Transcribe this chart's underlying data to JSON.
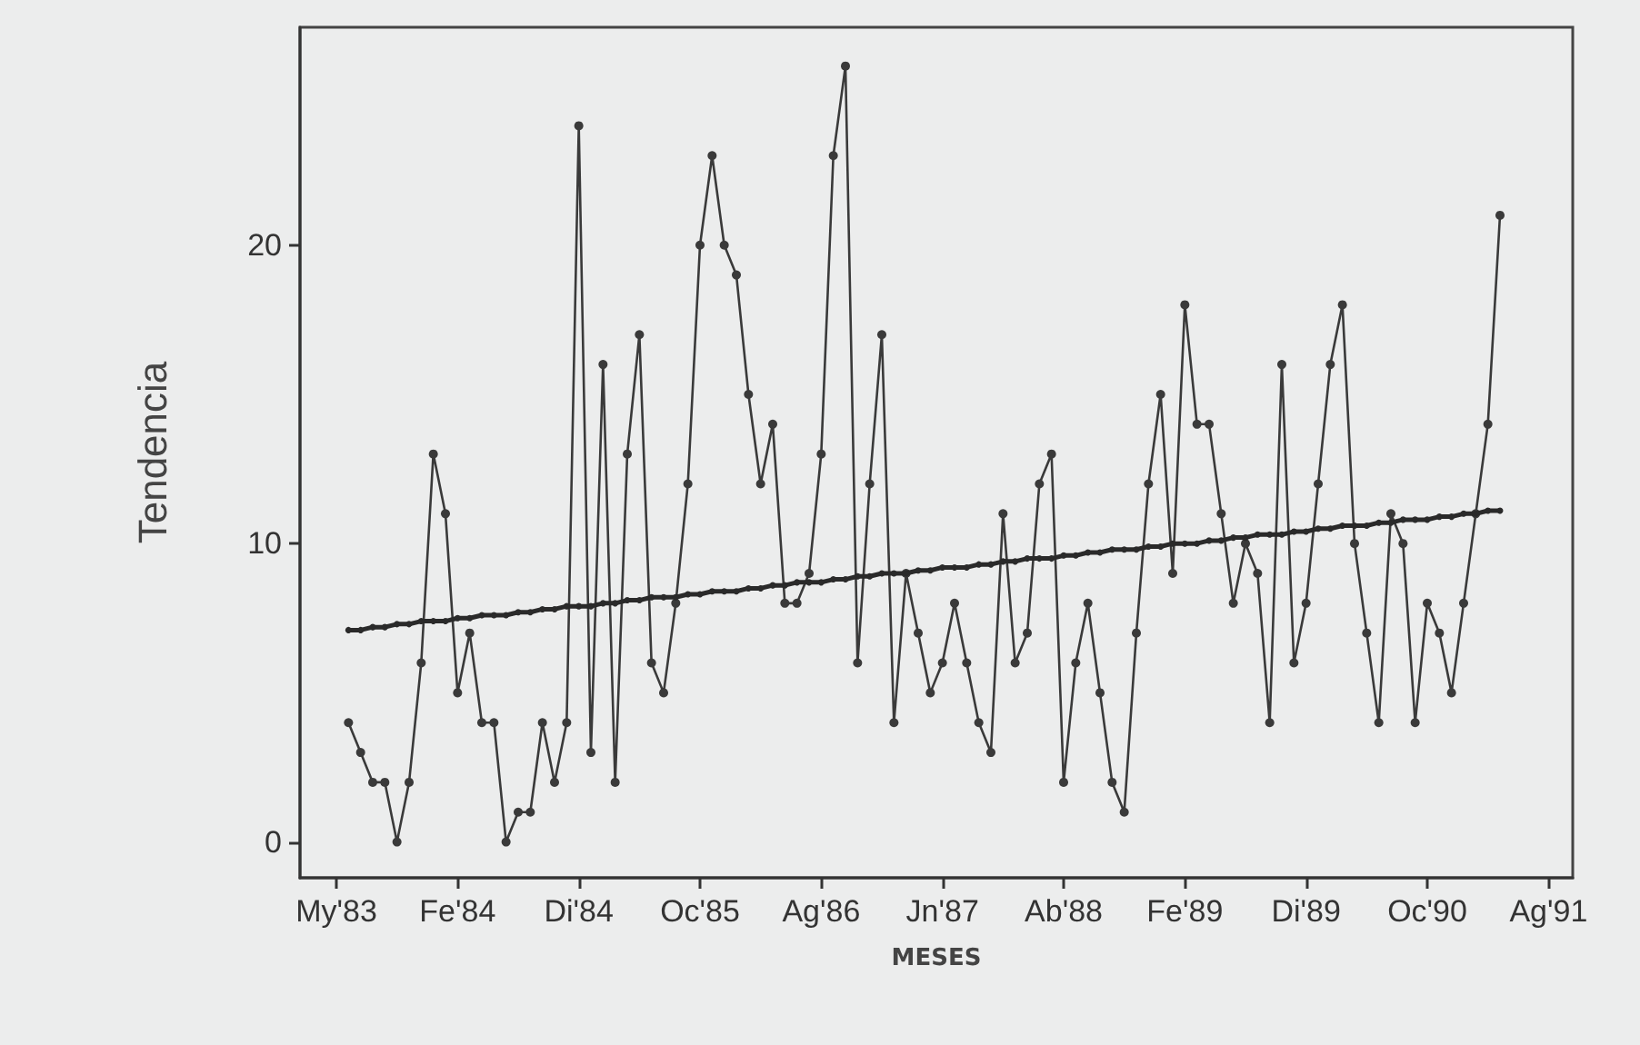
{
  "chart_data": {
    "type": "line",
    "xlabel": "MESES",
    "ylabel": "Tendencia",
    "categories": [
      null,
      null,
      null,
      "My'83",
      null,
      null,
      null,
      null,
      null,
      null,
      null,
      null,
      null,
      "Fe'84",
      null,
      null,
      null,
      null,
      null,
      null,
      null,
      null,
      null,
      "Di'84",
      null,
      null,
      null,
      null,
      null,
      null,
      null,
      null,
      null,
      "Oc'85",
      null,
      null,
      null,
      null,
      null,
      null,
      null,
      null,
      null,
      "Ag'86",
      null,
      null,
      null,
      null,
      null,
      null,
      null,
      null,
      null,
      "Jn'87",
      null,
      null,
      null,
      null,
      null,
      null,
      null,
      null,
      null,
      "Ab'88",
      null,
      null,
      null,
      null,
      null,
      null,
      null,
      null,
      null,
      "Fe'89",
      null,
      null,
      null,
      null,
      null,
      null,
      null,
      null,
      null,
      "Di'89",
      null,
      null,
      null,
      null,
      null,
      null,
      null,
      null,
      null,
      "Oc'90",
      null,
      null,
      null,
      null,
      null,
      null,
      null,
      null,
      null,
      "Ag'91",
      null,
      null
    ],
    "ylim": [
      -1.2,
      27.3
    ],
    "yticks": [
      0,
      10,
      20
    ],
    "grid": false,
    "marker": "circle",
    "line_style": "solid",
    "series": [
      {
        "color": "#3a3a3a",
        "values": [
          null,
          null,
          null,
          null,
          4,
          3,
          2,
          2,
          0,
          2,
          6,
          13,
          11,
          5,
          7,
          4,
          4,
          0,
          1,
          1,
          4,
          2,
          4,
          24,
          3,
          16,
          2,
          13,
          17,
          6,
          5,
          8,
          12,
          20,
          23,
          20,
          19,
          15,
          12,
          14,
          8,
          8,
          9,
          13,
          23,
          26,
          6,
          12,
          17,
          4,
          9,
          7,
          5,
          6,
          8,
          6,
          4,
          3,
          11,
          6,
          7,
          12,
          13,
          2,
          6,
          8,
          5,
          2,
          1,
          7,
          12,
          15,
          9,
          18,
          14,
          14,
          11,
          8,
          10,
          9,
          4,
          16,
          6,
          8,
          12,
          16,
          18,
          10,
          7,
          4,
          11,
          10,
          4,
          8,
          7,
          5,
          8,
          11,
          14,
          21,
          null,
          null,
          null,
          null,
          null,
          null
        ]
      },
      {
        "color": "#2a2a2a",
        "values": [
          null,
          null,
          null,
          null,
          7.1,
          7.1,
          7.2,
          7.2,
          7.3,
          7.3,
          7.4,
          7.4,
          7.4,
          7.5,
          7.5,
          7.6,
          7.6,
          7.6,
          7.7,
          7.7,
          7.8,
          7.8,
          7.9,
          7.9,
          7.9,
          8.0,
          8.0,
          8.1,
          8.1,
          8.2,
          8.2,
          8.2,
          8.3,
          8.3,
          8.4,
          8.4,
          8.4,
          8.5,
          8.5,
          8.6,
          8.6,
          8.7,
          8.7,
          8.7,
          8.8,
          8.8,
          8.9,
          8.9,
          9.0,
          9.0,
          9.0,
          9.1,
          9.1,
          9.2,
          9.2,
          9.2,
          9.3,
          9.3,
          9.4,
          9.4,
          9.5,
          9.5,
          9.5,
          9.6,
          9.6,
          9.7,
          9.7,
          9.8,
          9.8,
          9.8,
          9.9,
          9.9,
          10.0,
          10.0,
          10.0,
          10.1,
          10.1,
          10.2,
          10.2,
          10.3,
          10.3,
          10.3,
          10.4,
          10.4,
          10.5,
          10.5,
          10.6,
          10.6,
          10.6,
          10.7,
          10.7,
          10.8,
          10.8,
          10.8,
          10.9,
          10.9,
          11.0,
          11.0,
          11.1,
          11.1,
          null,
          null,
          null,
          null,
          null,
          null
        ]
      }
    ]
  }
}
